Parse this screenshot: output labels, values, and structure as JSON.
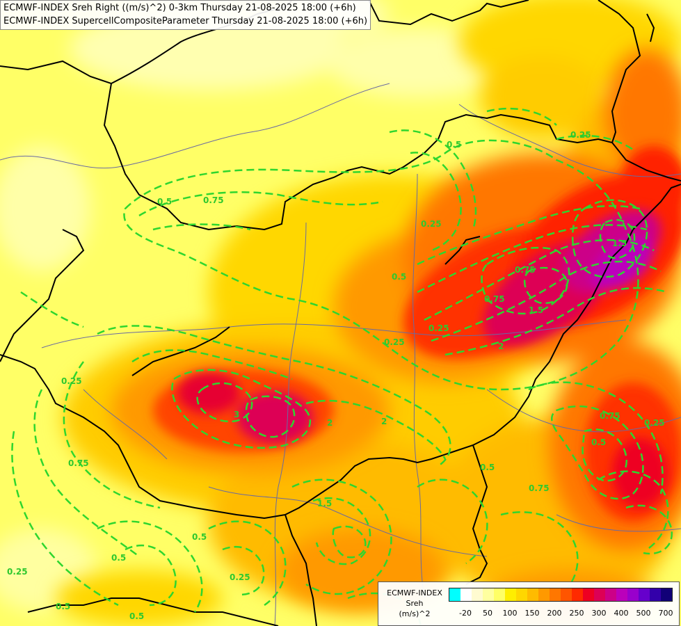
{
  "title": {
    "line1": "ECMWF-INDEX Sreh Right ((m/s)^2) 0-3km Thursday 21-08-2025 18:00 (+6h)",
    "line2": "ECMWF-INDEX SupercellCompositeParameter Thursday 21-08-2025 18:00 (+6h)"
  },
  "legend": {
    "title1": "ECMWF-INDEX",
    "title2": "Sreh",
    "title3": "(m/s)^2",
    "colors": [
      "#00ffff",
      "#ffffff",
      "#fffbd0",
      "#ffffa0",
      "#ffff66",
      "#ffee00",
      "#ffd700",
      "#ffbb00",
      "#ff9900",
      "#ff7700",
      "#ff5500",
      "#ff2a00",
      "#ee0022",
      "#dd0055",
      "#cc0088",
      "#bb00bb",
      "#9900cc",
      "#6600cc",
      "#3300aa",
      "#110077"
    ],
    "labels": [
      "-20",
      "50",
      "100",
      "150",
      "200",
      "250",
      "300",
      "400",
      "500",
      "700"
    ]
  },
  "contours": {
    "labels": [
      "0.5",
      "0.25",
      "0.75",
      "0.5",
      "0.25",
      "0.5",
      "0.25",
      "0.25",
      "0.75",
      "1.5",
      "2",
      "0.25",
      "3",
      "2",
      "0.75",
      "0.5",
      "0.25",
      "1.5",
      "2",
      "0.5",
      "0.25",
      "0.25",
      "0.75",
      "0.5",
      "0.5",
      "0.5",
      "0.75",
      "0.5",
      "1.5",
      "0.75"
    ]
  },
  "colors": {
    "contour": "#2ed62e",
    "border": "#000000",
    "river": "#6a6aa0"
  }
}
